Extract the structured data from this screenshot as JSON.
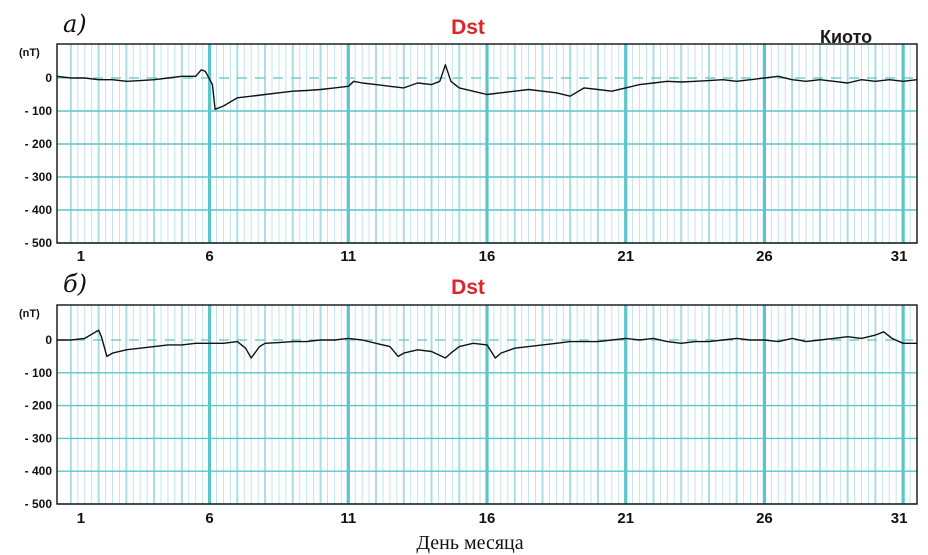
{
  "xlabel": "День месяца",
  "chart_data": [
    {
      "panel_label": "а)",
      "type": "line",
      "title": "Dst",
      "station": "Киото",
      "ylabel": "(nT)",
      "xlabel": "День месяца",
      "xlim": [
        0.5,
        31.5
      ],
      "ylim": [
        -500,
        50
      ],
      "yticks": [
        0,
        -100,
        -200,
        -300,
        -400,
        -500
      ],
      "ytick_labels": [
        "0",
        "- 100",
        "- 200",
        "- 300",
        "- 400",
        "- 500"
      ],
      "xticks": [
        1,
        6,
        11,
        16,
        21,
        26,
        31
      ],
      "grid": true,
      "series": [
        {
          "x": [
            0.5,
            1,
            1.5,
            2,
            2.5,
            3,
            3.5,
            4,
            4.5,
            5,
            5.5,
            5.7,
            5.85,
            6.1,
            6.2,
            6.5,
            7,
            7.5,
            8,
            8.5,
            9,
            9.5,
            10,
            10.5,
            11,
            11.2,
            11.5,
            12,
            12.5,
            13,
            13.5,
            14,
            14.3,
            14.5,
            14.7,
            15,
            15.5,
            16,
            16.5,
            17,
            17.5,
            18,
            18.5,
            19,
            19.5,
            20,
            20.5,
            21,
            21.5,
            22,
            22.5,
            23,
            23.5,
            24,
            24.5,
            25,
            25.5,
            26,
            26.5,
            27,
            27.5,
            28,
            28.5,
            29,
            29.5,
            30,
            30.5,
            31,
            31.5
          ],
          "y": [
            5,
            0,
            0,
            -5,
            -5,
            -10,
            -8,
            -5,
            0,
            5,
            5,
            25,
            20,
            -20,
            -95,
            -85,
            -60,
            -55,
            -50,
            -45,
            -40,
            -38,
            -35,
            -30,
            -25,
            -10,
            -15,
            -20,
            -25,
            -30,
            -15,
            -20,
            -10,
            40,
            -10,
            -30,
            -40,
            -50,
            -45,
            -40,
            -35,
            -40,
            -45,
            -55,
            -30,
            -35,
            -40,
            -30,
            -20,
            -15,
            -10,
            -12,
            -10,
            -8,
            -5,
            -10,
            -5,
            0,
            5,
            -5,
            -10,
            -5,
            -10,
            -15,
            -5,
            -10,
            -5,
            -10,
            -5
          ]
        }
      ]
    },
    {
      "panel_label": "б)",
      "type": "line",
      "title": "Dst",
      "ylabel": "(nT)",
      "xlabel": "День месяца",
      "xlim": [
        0.5,
        31.5
      ],
      "ylim": [
        -500,
        50
      ],
      "yticks": [
        0,
        -100,
        -200,
        -300,
        -400,
        -500
      ],
      "ytick_labels": [
        "0",
        "- 100",
        "- 200",
        "- 300",
        "- 400",
        "- 500"
      ],
      "xticks": [
        1,
        6,
        11,
        16,
        21,
        26,
        31
      ],
      "grid": true,
      "series": [
        {
          "x": [
            0.5,
            1,
            1.5,
            2,
            2.1,
            2.3,
            2.5,
            3,
            3.5,
            4,
            4.5,
            5,
            5.5,
            6,
            6.5,
            7,
            7.3,
            7.5,
            7.8,
            8,
            8.5,
            9,
            9.5,
            10,
            10.5,
            11,
            11.5,
            12,
            12.5,
            12.8,
            13,
            13.5,
            14,
            14.5,
            14.7,
            15,
            15.5,
            16,
            16.3,
            16.5,
            17,
            17.5,
            18,
            18.5,
            19,
            19.5,
            20,
            20.5,
            21,
            21.5,
            22,
            22.5,
            23,
            23.5,
            24,
            24.5,
            25,
            25.5,
            26,
            26.5,
            27,
            27.5,
            28,
            28.5,
            29,
            29.5,
            30,
            30.3,
            30.6,
            31,
            31.5
          ],
          "y": [
            0,
            0,
            5,
            30,
            10,
            -50,
            -40,
            -30,
            -25,
            -20,
            -15,
            -15,
            -10,
            -10,
            -10,
            -5,
            -25,
            -55,
            -20,
            -10,
            -8,
            -5,
            -5,
            0,
            0,
            5,
            0,
            -10,
            -20,
            -50,
            -40,
            -30,
            -35,
            -55,
            -40,
            -20,
            -10,
            -15,
            -55,
            -40,
            -25,
            -20,
            -15,
            -10,
            -5,
            -5,
            -5,
            0,
            5,
            0,
            5,
            -5,
            -10,
            -5,
            -5,
            0,
            5,
            0,
            0,
            -5,
            5,
            -5,
            0,
            5,
            10,
            5,
            15,
            25,
            5,
            -10,
            -10
          ]
        }
      ]
    }
  ]
}
